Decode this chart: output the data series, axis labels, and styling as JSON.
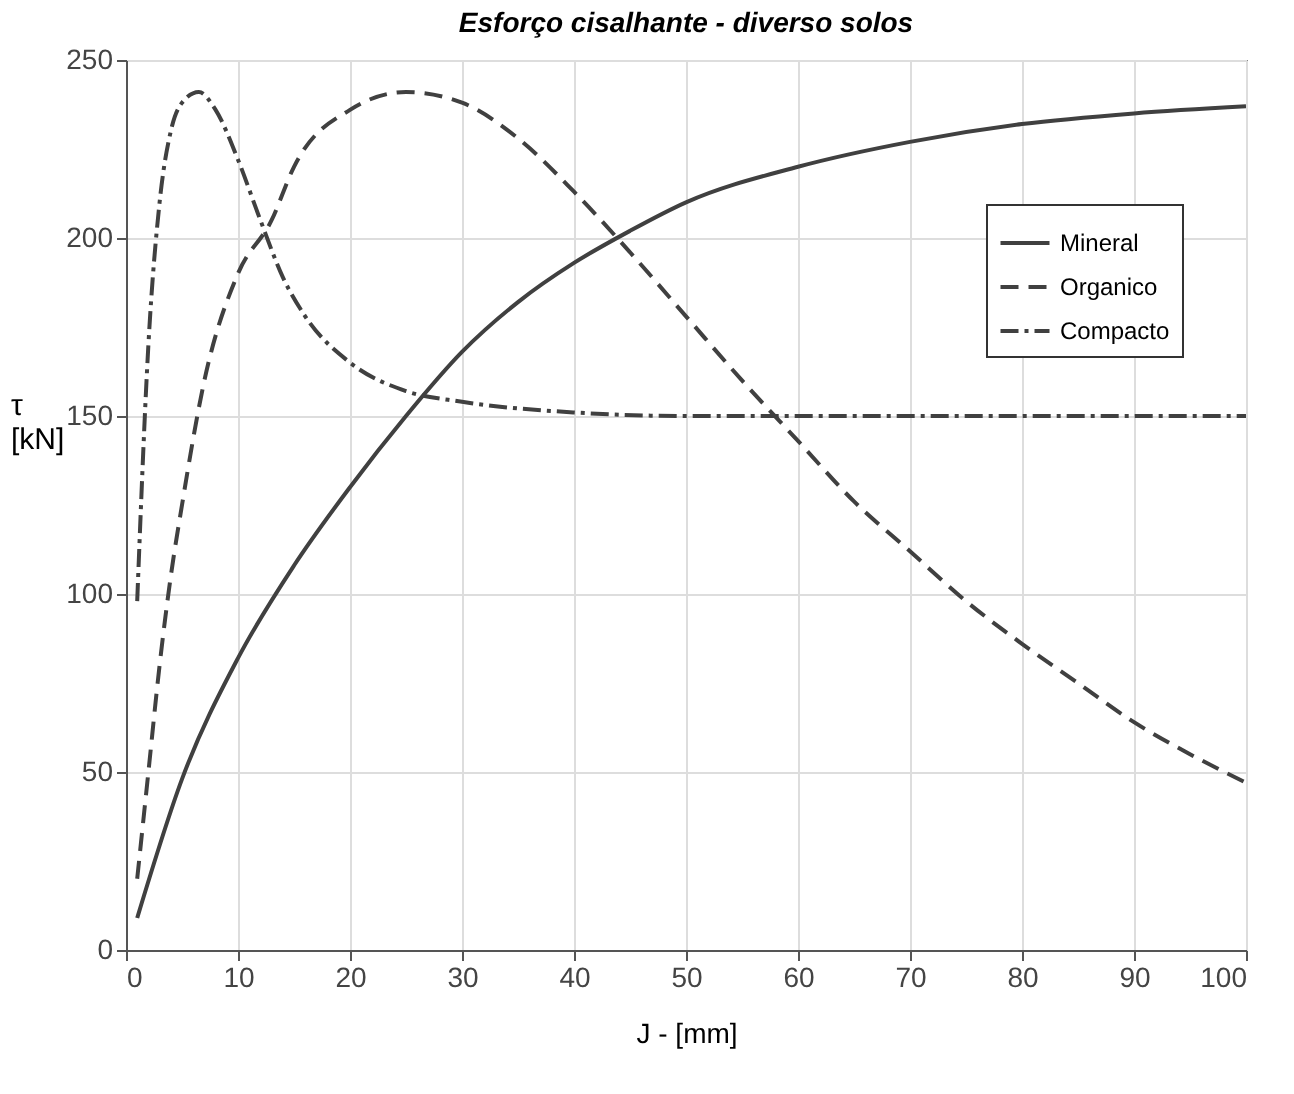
{
  "chart_data": {
    "type": "line",
    "title": "Esforço cisalhante - diverso solos",
    "xlabel": "J - [mm]",
    "ylabel": "τ [kN]",
    "xlim": [
      0,
      100
    ],
    "xticks": [
      0,
      10,
      20,
      30,
      40,
      50,
      60,
      70,
      80,
      90,
      100
    ],
    "ylim": [
      0,
      250
    ],
    "yticks": [
      0,
      50,
      100,
      150,
      200,
      250
    ],
    "grid": true,
    "legend": "top right",
    "series": [
      {
        "name": "Mineral",
        "color": "#404040",
        "line_style": "solid",
        "x": [
          1,
          5,
          10,
          15,
          20,
          25,
          30,
          35,
          40,
          45,
          50,
          60,
          70,
          80,
          90,
          100
        ],
        "values": [
          9,
          48,
          82,
          108,
          130,
          150,
          168,
          182,
          193,
          202,
          210,
          220,
          227,
          232,
          235,
          237
        ]
      },
      {
        "name": "Organico",
        "color": "#404040",
        "line_style": "dashed",
        "x": [
          1,
          2,
          3,
          4,
          5,
          7,
          10,
          13,
          15,
          20,
          25,
          30,
          35,
          40,
          45,
          50,
          55,
          60,
          65,
          70,
          75,
          80,
          85,
          90,
          95,
          100
        ],
        "values": [
          20,
          50,
          80,
          105,
          125,
          160,
          190,
          205,
          220,
          236,
          241,
          238,
          228,
          213,
          196,
          178,
          160,
          143,
          126,
          112,
          98,
          86,
          75,
          64,
          55,
          47
        ]
      },
      {
        "name": "Compacto",
        "color": "#404040",
        "line_style": "dashdot",
        "x": [
          1,
          2,
          3,
          4,
          5,
          6.5,
          8,
          10,
          12,
          14,
          16,
          20,
          25,
          30,
          40,
          50,
          100
        ],
        "values": [
          98,
          170,
          210,
          230,
          238,
          241,
          236,
          222,
          205,
          189,
          178,
          165,
          157,
          154,
          151,
          150,
          150
        ]
      }
    ]
  }
}
